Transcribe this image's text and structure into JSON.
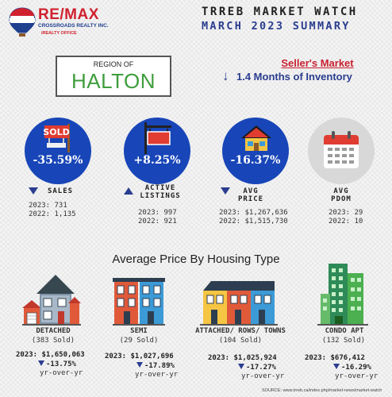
{
  "logo": {
    "brand": "RE/MAX",
    "company": "CROSSROADS REALTY INC.",
    "tagline": "iREALTY OFFICE"
  },
  "header": {
    "title": "TRREB MARKET WATCH",
    "subtitle": "MARCH 2023 SUMMARY"
  },
  "region": {
    "label": "REGION OF",
    "name": "HALTON"
  },
  "market": {
    "type": "Seller's Market",
    "inventory": "1.4 Months of Inventory"
  },
  "stats": [
    {
      "value": "-35.59%",
      "icon": "sold-sign-icon",
      "label": "SALES",
      "direction": "down",
      "current": "2023:   731",
      "previous": "2022: 1,135"
    },
    {
      "value": "+8.25%",
      "icon": "listing-sign-icon",
      "label": "ACTIVE LISTINGS",
      "direction": "up",
      "current": "2023: 997",
      "previous": "2022: 921"
    },
    {
      "value": "-16.37%",
      "icon": "house-icon",
      "label": "AVG PRICE",
      "direction": "down",
      "current": "2023: $1,267,636",
      "previous": "2022: $1,515,730"
    },
    {
      "value": "",
      "icon": "calendar-icon",
      "label": "AVG PDOM",
      "direction": "",
      "current": "2023: 29",
      "previous": "2022: 10"
    }
  ],
  "section_title": "Average Price By Housing Type",
  "housing": [
    {
      "type": "DETACHED",
      "sold": "(383 Sold)",
      "price": "2023: $1,650,063",
      "change": "-13.75%",
      "yoy": "yr-over-yr",
      "icon": "detached-house-icon"
    },
    {
      "type": "SEMI",
      "sold": "(29 Sold)",
      "price": "2023: $1,027,696",
      "change": "-17.89%",
      "yoy": "yr-over-yr",
      "icon": "semi-house-icon"
    },
    {
      "type": "ATTACHED/ ROWS/ TOWNS",
      "sold": "(104 Sold)",
      "price": "2023: $1,025,924",
      "change": "-17.27%",
      "yoy": "yr-over-yr",
      "icon": "townhouse-icon"
    },
    {
      "type": "CONDO APT",
      "sold": "(132 Sold)",
      "price": "2023: $676,412",
      "change": "-16.29%",
      "yoy": "yr-over-yr",
      "icon": "condo-tower-icon"
    }
  ],
  "source": "SOURCE:   www.trreb.ca/index.php/market-news/market-watch",
  "colors": {
    "brand_red": "#d0202e",
    "brand_blue": "#1f3f8f",
    "circle_blue": "#1846b8",
    "region_green": "#3e9d3c"
  }
}
